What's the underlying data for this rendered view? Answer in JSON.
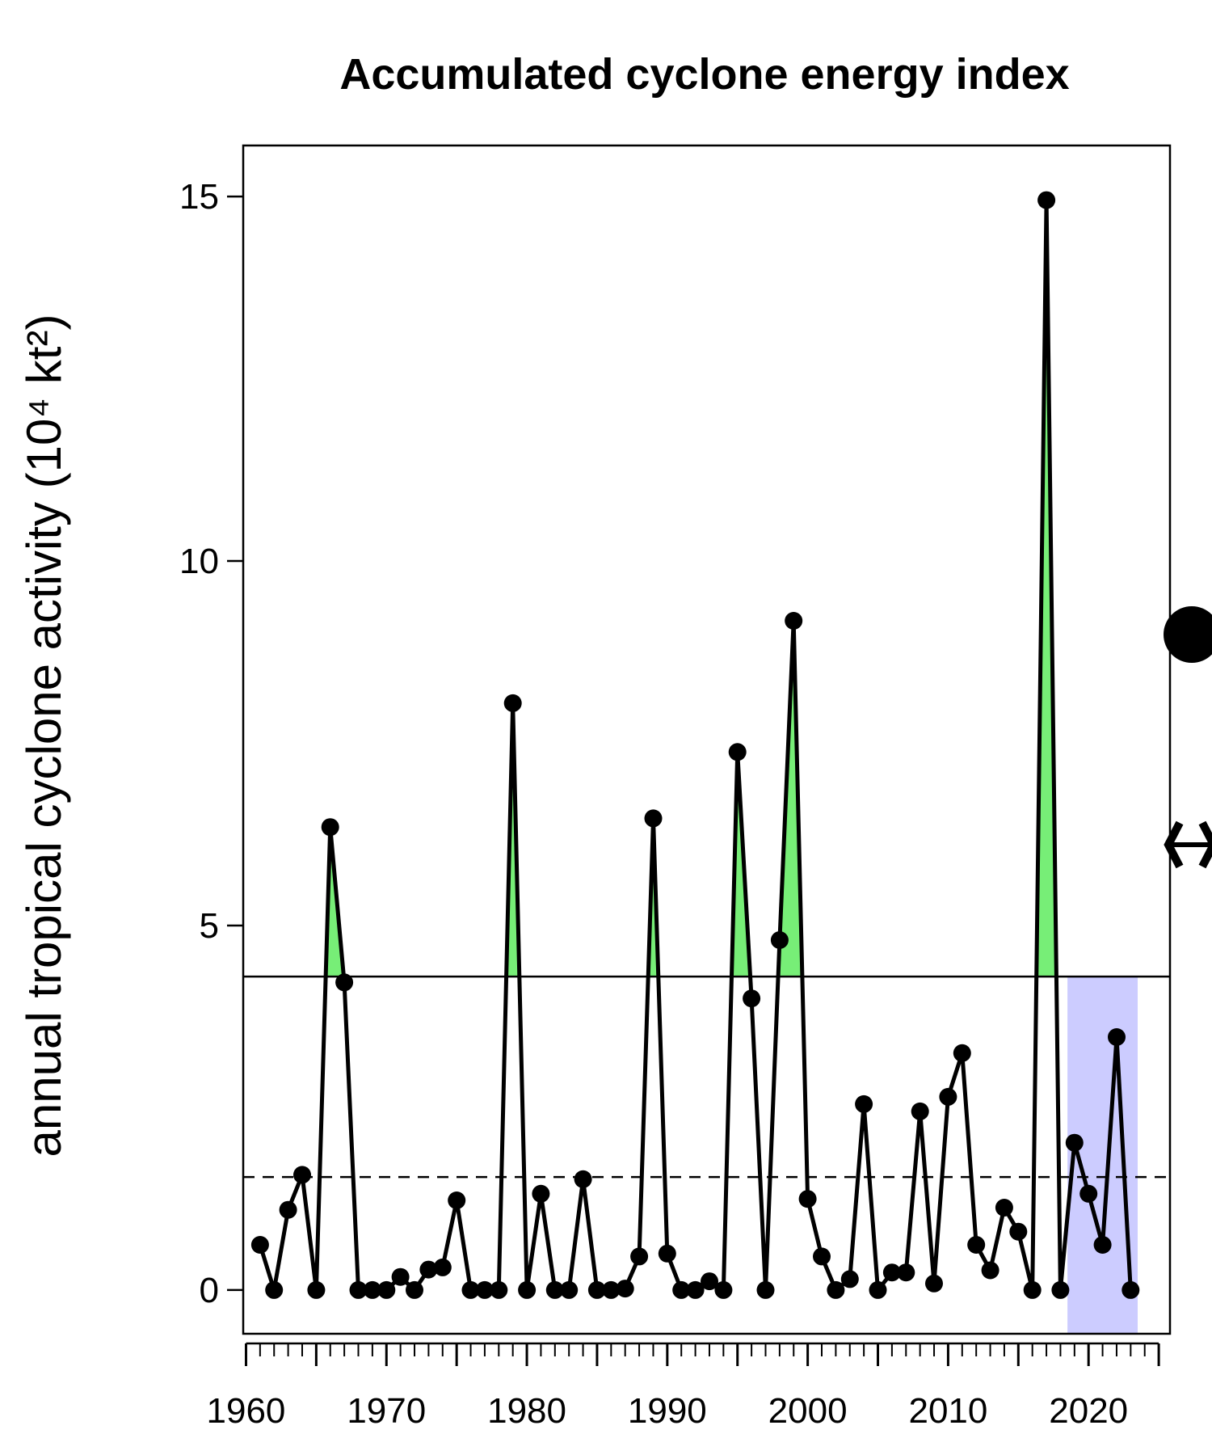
{
  "chart_data": {
    "type": "line",
    "title": "Accumulated cyclone energy index",
    "ylabel": "annual tropical cyclone activity (10⁴ kt²)",
    "xlabel": "",
    "xlim": [
      1959.8,
      2025.8
    ],
    "ylim": [
      -0.6,
      15.7
    ],
    "x_ticks": [
      1960,
      1970,
      1980,
      1990,
      2000,
      2010,
      2020
    ],
    "y_ticks": [
      0,
      5,
      10,
      15
    ],
    "solid_threshold": 4.3,
    "dashed_threshold": 1.55,
    "highlight_span": [
      2018.5,
      2023.5
    ],
    "colors": {
      "line": "#000000",
      "above_fill": "#77ee77",
      "highlight": "#ccccff"
    },
    "series": [
      {
        "x": [
          1961,
          1962,
          1963,
          1964,
          1965,
          1966,
          1967,
          1968,
          1969,
          1970,
          1971,
          1972,
          1973,
          1974,
          1975,
          1976,
          1977,
          1978,
          1979,
          1980,
          1981,
          1982,
          1983,
          1984,
          1985,
          1986,
          1987,
          1988,
          1989,
          1990,
          1991,
          1992,
          1993,
          1994,
          1995,
          1996,
          1997,
          1998,
          1999,
          2000,
          2001,
          2002,
          2003,
          2004,
          2005,
          2006,
          2007,
          2008,
          2009,
          2010,
          2011,
          2012,
          2013,
          2014,
          2015,
          2016,
          2017,
          2018,
          2019,
          2020,
          2021,
          2022,
          2023
        ],
        "values": [
          0.62,
          0,
          1.1,
          1.58,
          0,
          6.35,
          4.22,
          0,
          0,
          0,
          0.18,
          0,
          0.28,
          0.31,
          1.23,
          0,
          0,
          0,
          8.05,
          0,
          1.32,
          0,
          0,
          1.52,
          0,
          0,
          0.02,
          0.46,
          6.47,
          0.5,
          0,
          0,
          0.12,
          0,
          7.38,
          4.0,
          0,
          4.8,
          9.18,
          1.25,
          0.46,
          0,
          0.15,
          2.55,
          0,
          0.24,
          0.24,
          2.45,
          0.09,
          2.65,
          3.25,
          0.62,
          0.27,
          1.13,
          0.8,
          0,
          14.95,
          0,
          2.02,
          1.32,
          0.62,
          3.47,
          0
        ]
      }
    ]
  },
  "margin_marks": {
    "circle_icon": "filled-circle",
    "arrow_icon": "double-headed-arrow"
  }
}
